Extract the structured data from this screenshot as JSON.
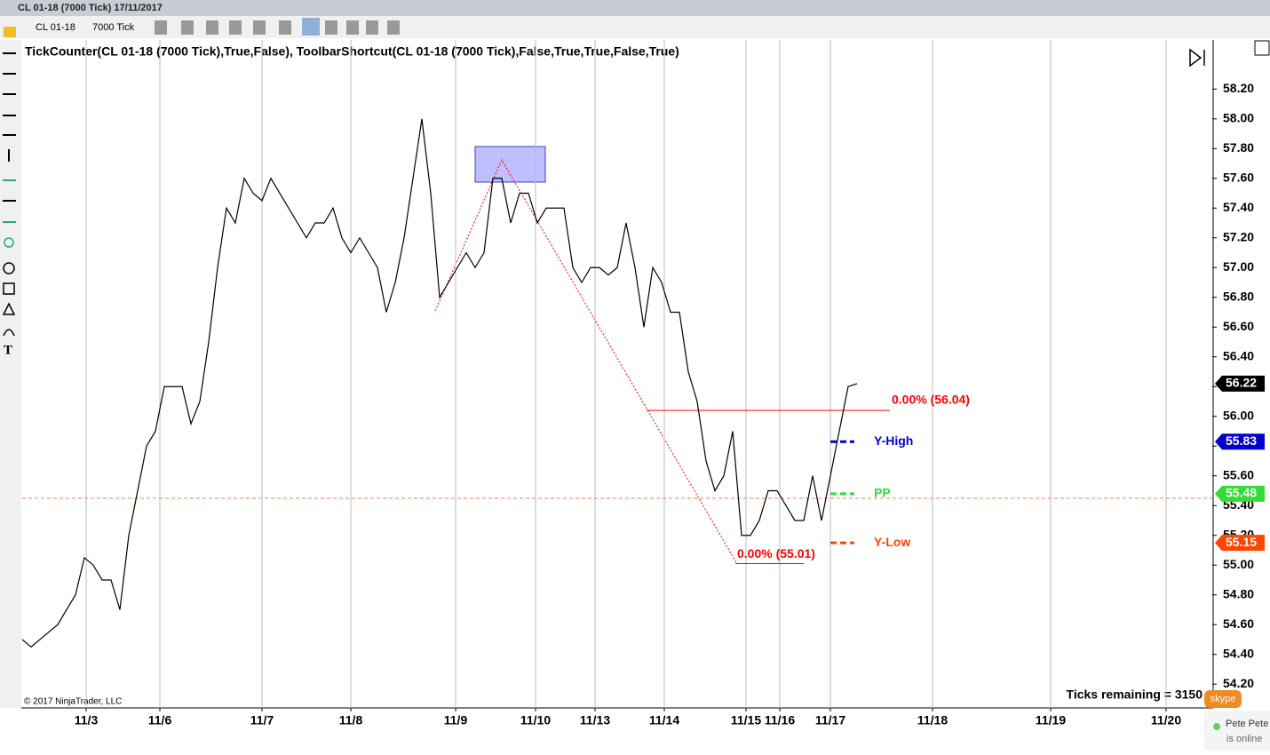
{
  "window": {
    "title": "CL 01-18 (7000 Tick)  17/11/2017",
    "instrument": "CL 01-18",
    "interval": "7000 Tick"
  },
  "chart_data": {
    "type": "line",
    "title": "TickCounter(CL 01-18 (7000 Tick),True,False), ToolbarShortcut(CL 01-18 (7000 Tick),False,True,True,False,True)",
    "x": [
      0,
      1,
      2,
      3,
      4,
      5,
      6,
      7,
      8,
      9,
      10,
      11,
      12,
      13,
      14,
      15,
      16,
      17,
      18,
      19,
      20,
      21,
      22,
      23,
      24,
      25,
      26,
      27,
      28,
      29,
      30,
      31,
      32,
      33,
      34,
      35,
      36,
      37,
      38,
      39,
      40,
      41,
      42,
      43,
      44,
      45,
      46,
      47,
      48,
      49,
      50,
      51,
      52,
      53,
      54,
      55,
      56,
      57,
      58,
      59,
      60,
      61,
      62,
      63,
      64,
      65,
      66,
      67,
      68,
      69,
      70,
      71,
      72,
      73,
      74,
      75,
      76,
      77,
      78,
      79,
      80,
      81,
      82,
      83,
      84,
      85,
      86,
      87,
      88,
      89,
      90,
      91,
      92,
      93,
      94
    ],
    "series": [
      {
        "name": "CL 01-18",
        "color": "#000000",
        "values": [
          54.5,
          54.45,
          54.5,
          54.55,
          54.6,
          54.7,
          54.8,
          55.05,
          55.0,
          54.9,
          54.9,
          54.7,
          55.2,
          55.5,
          55.8,
          55.9,
          56.2,
          56.2,
          56.2,
          55.95,
          56.1,
          56.5,
          57.0,
          57.4,
          57.3,
          57.6,
          57.5,
          57.45,
          57.6,
          57.5,
          57.4,
          57.3,
          57.2,
          57.3,
          57.3,
          57.4,
          57.2,
          57.1,
          57.2,
          57.1,
          57.0,
          56.7,
          56.9,
          57.2,
          57.6,
          58.0,
          57.5,
          56.8,
          56.9,
          57.0,
          57.1,
          57.0,
          57.1,
          57.6,
          57.6,
          57.3,
          57.5,
          57.5,
          57.3,
          57.4,
          57.4,
          57.4,
          57.0,
          56.9,
          57.0,
          57.0,
          56.95,
          57.0,
          57.3,
          57.0,
          56.6,
          57.0,
          56.9,
          56.7,
          56.7,
          56.3,
          56.1,
          55.7,
          55.5,
          55.6,
          55.9,
          55.2,
          55.2,
          55.3,
          55.5,
          55.5,
          55.4,
          55.3,
          55.3,
          55.6,
          55.3,
          55.6,
          55.9,
          56.2,
          56.22
        ]
      }
    ],
    "xlim": [
      0,
      134
    ],
    "xticks": [
      {
        "value": 7.2,
        "label": "11/3"
      },
      {
        "value": 15.5,
        "label": "11/6"
      },
      {
        "value": 27,
        "label": "11/7"
      },
      {
        "value": 37,
        "label": "11/8"
      },
      {
        "value": 48.8,
        "label": "11/9"
      },
      {
        "value": 57.8,
        "label": "11/10"
      },
      {
        "value": 64.5,
        "label": "11/13"
      },
      {
        "value": 72.3,
        "label": "11/14"
      },
      {
        "value": 81.5,
        "label": "11/15"
      },
      {
        "value": 85.3,
        "label": "11/16"
      },
      {
        "value": 91,
        "label": "11/17"
      },
      {
        "value": 102.5,
        "label": "11/18"
      },
      {
        "value": 115.8,
        "label": "11/19"
      },
      {
        "value": 128.8,
        "label": "11/20"
      }
    ],
    "ylim": [
      54.04,
      58.53
    ],
    "yticks": [
      {
        "value": 54.2,
        "label": "54.20"
      },
      {
        "value": 54.4,
        "label": "54.40"
      },
      {
        "value": 54.6,
        "label": "54.60"
      },
      {
        "value": 54.8,
        "label": "54.80"
      },
      {
        "value": 55.0,
        "label": "55.00"
      },
      {
        "value": 55.2,
        "label": "55.20"
      },
      {
        "value": 55.4,
        "label": "55.40"
      },
      {
        "value": 55.6,
        "label": "55.60"
      },
      {
        "value": 55.8,
        "label": "55.80"
      },
      {
        "value": 56.0,
        "label": "56.00"
      },
      {
        "value": 56.2,
        "label": "56.20"
      },
      {
        "value": 56.4,
        "label": "56.40"
      },
      {
        "value": 56.6,
        "label": "56.60"
      },
      {
        "value": 56.8,
        "label": "56.80"
      },
      {
        "value": 57.0,
        "label": "57.00"
      },
      {
        "value": 57.2,
        "label": "57.20"
      },
      {
        "value": 57.4,
        "label": "57.40"
      },
      {
        "value": 57.6,
        "label": "57.60"
      },
      {
        "value": 57.8,
        "label": "57.80"
      },
      {
        "value": 58.0,
        "label": "58.00"
      },
      {
        "value": 58.2,
        "label": "58.20"
      }
    ],
    "levels": [
      {
        "name": "Y-High",
        "value": 55.83,
        "color": "#0000cc"
      },
      {
        "name": "PP",
        "value": 55.48,
        "color": "#33dd33"
      },
      {
        "name": "Y-Low",
        "value": 55.15,
        "color": "#ff4500"
      }
    ],
    "last_price": {
      "value": 56.22,
      "color": "#000000"
    },
    "horizontal_line": {
      "value": 55.45,
      "color": "#ff7f50"
    },
    "fib": {
      "color": "#ff0000",
      "values": [
        56.04,
        55.01
      ],
      "value_labels": [
        "0.00% (56.04)",
        "0.00% (55.01)"
      ]
    },
    "ticks_remaining": "Ticks remaining = 3150",
    "copyright": "© 2017 NinjaTrader, LLC"
  },
  "skype": {
    "brand": "skype",
    "name": "Pete Pete",
    "status": "is online"
  }
}
